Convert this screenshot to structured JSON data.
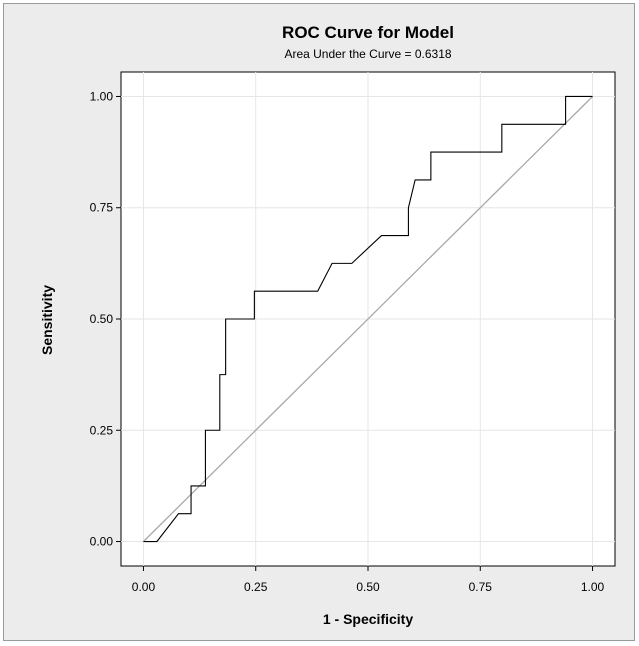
{
  "chart_data": {
    "type": "line",
    "title": "ROC Curve for Model",
    "subtitle": "Area Under the Curve = 0.6318",
    "xlabel": "1 - Specificity",
    "ylabel": "Sensitivity",
    "xlim": [
      -0.05,
      1.05
    ],
    "ylim": [
      -0.055,
      1.055
    ],
    "grid": true,
    "x_ticks": [
      "0.00",
      "0.25",
      "0.50",
      "0.75",
      "1.00"
    ],
    "y_ticks": [
      "0.00",
      "0.25",
      "0.50",
      "0.75",
      "1.00"
    ],
    "series": [
      {
        "name": "",
        "x": [
          0.0,
          0.03,
          0.078,
          0.106,
          0.106,
          0.138,
          0.138,
          0.17,
          0.17,
          0.183,
          0.183,
          0.247,
          0.247,
          0.388,
          0.42,
          0.464,
          0.53,
          0.59,
          0.59,
          0.605,
          0.605,
          0.64,
          0.64,
          0.798,
          0.798,
          0.94,
          0.94,
          1.0
        ],
        "y": [
          0.0,
          0.0,
          0.0625,
          0.0625,
          0.125,
          0.125,
          0.25,
          0.25,
          0.375,
          0.375,
          0.5,
          0.5,
          0.5625,
          0.5625,
          0.625,
          0.625,
          0.6875,
          0.6875,
          0.75,
          0.8125,
          0.8125,
          0.8125,
          0.875,
          0.875,
          0.9375,
          0.9375,
          1.0,
          1.0
        ],
        "color": "#000000"
      },
      {
        "name": "",
        "x": [
          0.0,
          1.0
        ],
        "y": [
          0.0,
          1.0
        ],
        "color": "#a8a8a8"
      }
    ]
  }
}
